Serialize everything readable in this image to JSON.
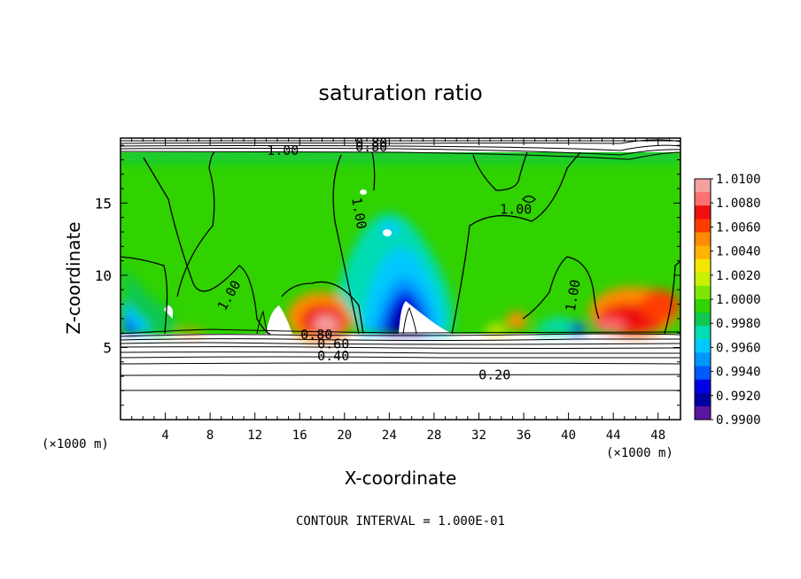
{
  "chart_data": {
    "type": "heatmap",
    "title": "saturation ratio",
    "xlabel": "X-coordinate",
    "ylabel": "Z-coordinate",
    "x_unit": "(×1000 m)",
    "z_unit": "(×1000 m)",
    "xlim": [
      0,
      50
    ],
    "ylim": [
      0,
      19.5
    ],
    "x_ticks": [
      4,
      8,
      12,
      16,
      20,
      24,
      28,
      32,
      36,
      40,
      44,
      48
    ],
    "x_tick_labels": [
      "4",
      "8",
      "12",
      "16",
      "20",
      "24",
      "28",
      "32",
      "36",
      "40",
      "44",
      "48"
    ],
    "y_ticks": [
      5,
      10,
      15
    ],
    "y_tick_labels": [
      "5",
      "10",
      "15"
    ],
    "footer": "CONTOUR INTERVAL = 1.000E-01",
    "colorbar": {
      "levels": [
        "1.0100",
        "1.0080",
        "1.0060",
        "1.0040",
        "1.0020",
        "1.0000",
        "0.9980",
        "0.9960",
        "0.9940",
        "0.9920",
        "0.9900"
      ],
      "colors": [
        "#f4a0a0",
        "#ff7070",
        "#ee1010",
        "#ff3c00",
        "#ff8c00",
        "#ffb400",
        "#f5e600",
        "#c8f000",
        "#7ee600",
        "#30d200",
        "#10c850",
        "#00dcb4",
        "#00c8ff",
        "#0096ff",
        "#005aff",
        "#0000e6",
        "#0000a0",
        "#5a14a0"
      ]
    },
    "contour_labels": [
      {
        "text": "0.80",
        "x": 22.4,
        "z": 19.15
      },
      {
        "text": "0.80",
        "x": 22.4,
        "z": 18.9
      },
      {
        "text": "1.00",
        "x": 14.5,
        "z": 18.65
      },
      {
        "text": "1.00",
        "x": 35.3,
        "z": 14.55
      },
      {
        "text": "1.00",
        "x": 21.3,
        "z": 14.3,
        "rotate": 80
      },
      {
        "text": "1.00",
        "x": 9.7,
        "z": 8.6,
        "rotate": -60
      },
      {
        "text": "1.00",
        "x": 40.4,
        "z": 8.6,
        "rotate": -80
      },
      {
        "text": "0.80",
        "x": 17.5,
        "z": 5.9
      },
      {
        "text": "0.60",
        "x": 19.0,
        "z": 5.25
      },
      {
        "text": "0.40",
        "x": 19.0,
        "z": 4.4
      },
      {
        "text": "0.20",
        "x": 33.4,
        "z": 3.1
      }
    ]
  }
}
